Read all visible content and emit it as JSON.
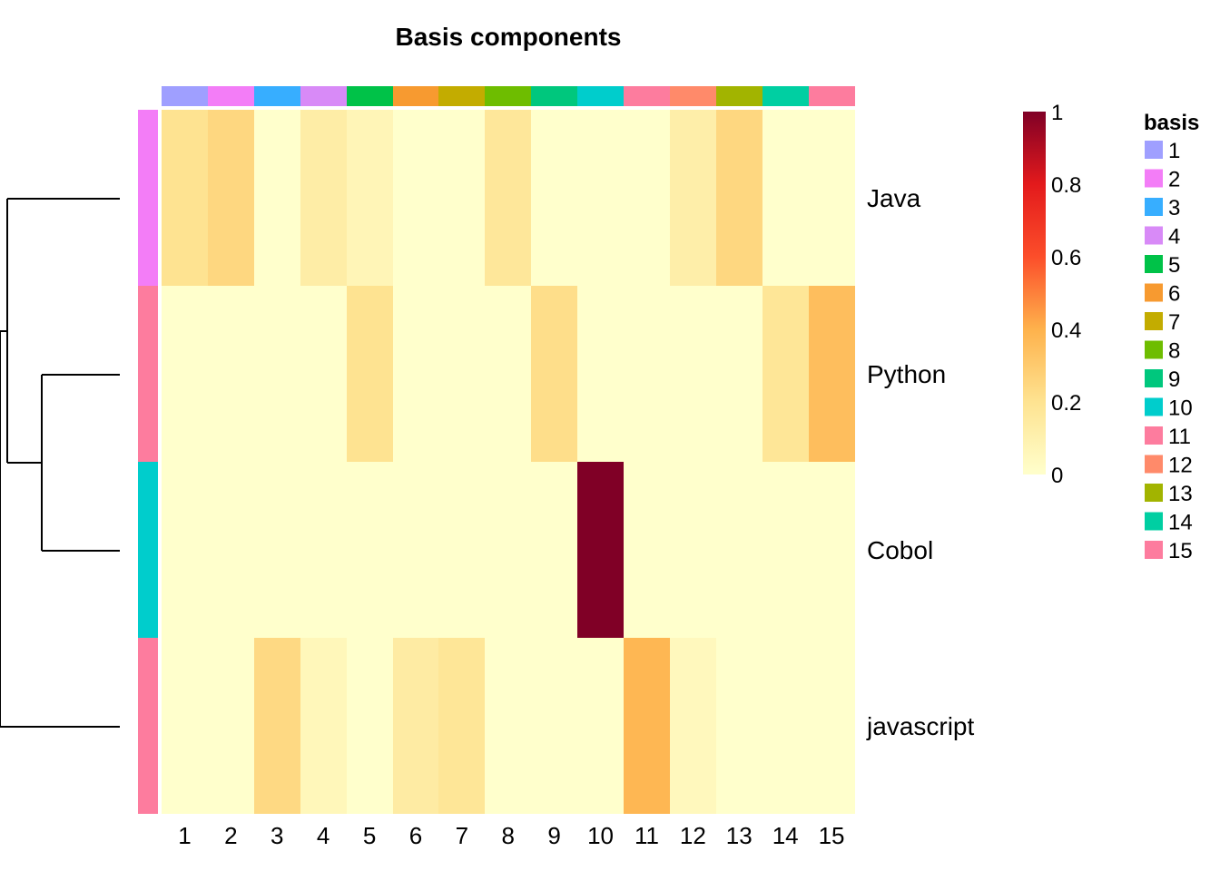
{
  "chart_data": {
    "type": "heatmap",
    "title": "Basis components",
    "rows": [
      "Java",
      "Python",
      "Cobol",
      "javascript"
    ],
    "columns": [
      "1",
      "2",
      "3",
      "4",
      "5",
      "6",
      "7",
      "8",
      "9",
      "10",
      "11",
      "12",
      "13",
      "14",
      "15"
    ],
    "values": [
      [
        0.2,
        0.25,
        0.0,
        0.13,
        0.07,
        0.0,
        0.0,
        0.17,
        0.0,
        0.0,
        0.0,
        0.12,
        0.25,
        0.0,
        0.0
      ],
      [
        0.0,
        0.0,
        0.0,
        0.0,
        0.2,
        0.0,
        0.0,
        0.0,
        0.22,
        0.0,
        0.0,
        0.0,
        0.0,
        0.18,
        0.35
      ],
      [
        0.0,
        0.0,
        0.0,
        0.0,
        0.0,
        0.0,
        0.0,
        0.0,
        0.0,
        1.0,
        0.0,
        0.0,
        0.0,
        0.0,
        0.0
      ],
      [
        0.0,
        0.0,
        0.24,
        0.06,
        0.0,
        0.14,
        0.18,
        0.0,
        0.0,
        0.0,
        0.38,
        0.05,
        0.0,
        0.0,
        0.0
      ]
    ],
    "value_range": [
      0,
      1
    ],
    "colorbar_ticks": [
      "0",
      "0.2",
      "0.4",
      "0.6",
      "0.8",
      "1"
    ],
    "row_annotation_colors": [
      "#F37DF7",
      "#FD7C9E",
      "#00CDCC",
      "#FD7C9E"
    ],
    "legend": {
      "title": "basis",
      "items": [
        {
          "label": "1",
          "color": "#9F9FFF"
        },
        {
          "label": "2",
          "color": "#F37DF7"
        },
        {
          "label": "3",
          "color": "#37AEFF"
        },
        {
          "label": "4",
          "color": "#D88AF7"
        },
        {
          "label": "5",
          "color": "#00C248"
        },
        {
          "label": "6",
          "color": "#F79A30"
        },
        {
          "label": "7",
          "color": "#C3AC00"
        },
        {
          "label": "8",
          "color": "#6EBD00"
        },
        {
          "label": "9",
          "color": "#00C77D"
        },
        {
          "label": "10",
          "color": "#00CDCC"
        },
        {
          "label": "11",
          "color": "#FD7C9E"
        },
        {
          "label": "12",
          "color": "#FF8A6A"
        },
        {
          "label": "13",
          "color": "#A2B400"
        },
        {
          "label": "14",
          "color": "#00CFA2"
        },
        {
          "label": "15",
          "color": "#FD7C9E"
        }
      ]
    },
    "dendrogram": true,
    "legend_position": "right"
  }
}
